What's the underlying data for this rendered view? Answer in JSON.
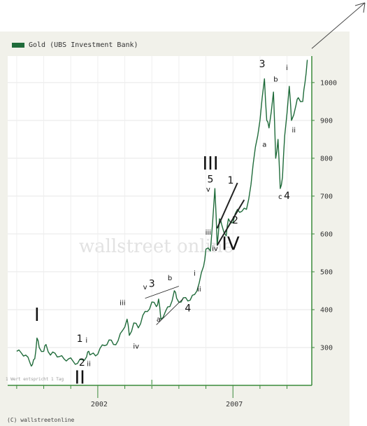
{
  "legend": {
    "series_name": "Gold (UBS Investment Bank)"
  },
  "credit": "(C) wallstreetonline",
  "note": "1 Wert entspricht 1 Tag",
  "watermark": "wallstreet online",
  "colors": {
    "line": "#1f6b3a",
    "plot_bg": "#ffffff",
    "frame_bg": "#f1f1ea",
    "axis": "#3a8a3a"
  },
  "chart_data": {
    "type": "line",
    "series": [
      {
        "name": "Gold (UBS Investment Bank)",
        "values": [
          [
            "1999-01",
            290
          ],
          [
            "1999-03",
            286
          ],
          [
            "1999-05",
            280
          ],
          [
            "1999-07",
            258
          ],
          [
            "1999-08",
            255
          ],
          [
            "1999-09",
            270
          ],
          [
            "1999-10",
            325
          ],
          [
            "1999-11",
            300
          ],
          [
            "2000-01",
            290
          ],
          [
            "2000-02",
            308
          ],
          [
            "2000-04",
            280
          ],
          [
            "2000-06",
            285
          ],
          [
            "2000-08",
            276
          ],
          [
            "2000-10",
            270
          ],
          [
            "2000-12",
            270
          ],
          [
            "2001-02",
            264
          ],
          [
            "2001-04",
            258
          ],
          [
            "2001-06",
            268
          ],
          [
            "2001-08",
            275
          ],
          [
            "2001-09",
            290
          ],
          [
            "2001-10",
            282
          ],
          [
            "2001-12",
            278
          ],
          [
            "2002-02",
            298
          ],
          [
            "2002-04",
            305
          ],
          [
            "2002-06",
            320
          ],
          [
            "2002-08",
            308
          ],
          [
            "2002-10",
            318
          ],
          [
            "2002-12",
            345
          ],
          [
            "2003-02",
            375
          ],
          [
            "2003-03",
            332
          ],
          [
            "2003-05",
            365
          ],
          [
            "2003-07",
            352
          ],
          [
            "2003-09",
            385
          ],
          [
            "2003-11",
            395
          ],
          [
            "2004-01",
            420
          ],
          [
            "2004-03",
            408
          ],
          [
            "2004-04",
            428
          ],
          [
            "2004-05",
            375
          ],
          [
            "2004-07",
            395
          ],
          [
            "2004-09",
            408
          ],
          [
            "2004-11",
            450
          ],
          [
            "2004-12",
            430
          ],
          [
            "2005-02",
            420
          ],
          [
            "2005-04",
            432
          ],
          [
            "2005-06",
            425
          ],
          [
            "2005-08",
            440
          ],
          [
            "2005-10",
            470
          ],
          [
            "2005-12",
            515
          ],
          [
            "2006-01",
            560
          ],
          [
            "2006-03",
            555
          ],
          [
            "2006-05",
            720
          ],
          [
            "2006-06",
            570
          ],
          [
            "2006-07",
            640
          ],
          [
            "2006-08",
            625
          ],
          [
            "2006-10",
            595
          ],
          [
            "2006-11",
            640
          ],
          [
            "2007-01",
            630
          ],
          [
            "2007-03",
            665
          ],
          [
            "2007-05",
            660
          ],
          [
            "2007-07",
            665
          ],
          [
            "2007-09",
            730
          ],
          [
            "2007-11",
            830
          ],
          [
            "2008-01",
            900
          ],
          [
            "2008-03",
            1010
          ],
          [
            "2008-04",
            900
          ],
          [
            "2008-05",
            880
          ],
          [
            "2008-07",
            975
          ],
          [
            "2008-08",
            800
          ],
          [
            "2008-09",
            850
          ],
          [
            "2008-10",
            720
          ],
          [
            "2008-11",
            750
          ],
          [
            "2008-12",
            860
          ],
          [
            "2009-02",
            990
          ],
          [
            "2009-03",
            900
          ],
          [
            "2009-05",
            940
          ],
          [
            "2009-06",
            960
          ],
          [
            "2009-08",
            950
          ],
          [
            "2009-09",
            1000
          ],
          [
            "2009-10",
            1060
          ]
        ]
      }
    ],
    "x_tick_labels": [
      "2002",
      "2007"
    ],
    "y_ticks": [
      300,
      400,
      500,
      600,
      700,
      800,
      900,
      1000
    ],
    "ylim": [
      200,
      1070
    ],
    "xlim": [
      "1998-09",
      "2009-12"
    ],
    "grid": true,
    "legend_position": "top-left",
    "annotations": [
      {
        "text": "I",
        "x": "1999-10",
        "y": 370,
        "size": "large"
      },
      {
        "text": "II",
        "x": "2001-05",
        "y": 205,
        "size": "large"
      },
      {
        "text": "1",
        "x": "2001-05",
        "y": 315,
        "size": "medium"
      },
      {
        "text": "i",
        "x": "2001-08",
        "y": 313,
        "size": "small"
      },
      {
        "text": "2",
        "x": "2001-06",
        "y": 252,
        "size": "medium"
      },
      {
        "text": "ii",
        "x": "2001-09",
        "y": 251,
        "size": "small"
      },
      {
        "text": "iii",
        "x": "2002-12",
        "y": 412,
        "size": "small"
      },
      {
        "text": "iv",
        "x": "2003-06",
        "y": 297,
        "size": "small"
      },
      {
        "text": "v",
        "x": "2003-10",
        "y": 454,
        "size": "small"
      },
      {
        "text": "3",
        "x": "2004-01",
        "y": 460,
        "size": "medium"
      },
      {
        "text": "b",
        "x": "2004-09",
        "y": 478,
        "size": "small"
      },
      {
        "text": "a",
        "x": "2004-04",
        "y": 368,
        "size": "small"
      },
      {
        "text": "4",
        "x": "2005-05",
        "y": 395,
        "size": "medium"
      },
      {
        "text": "i",
        "x": "2005-08",
        "y": 490,
        "size": "small"
      },
      {
        "text": "ii",
        "x": "2005-10",
        "y": 448,
        "size": "small"
      },
      {
        "text": "III",
        "x": "2006-03",
        "y": 770,
        "size": "large"
      },
      {
        "text": "v",
        "x": "2006-02",
        "y": 712,
        "size": "small"
      },
      {
        "text": "5",
        "x": "2006-03",
        "y": 736,
        "size": "medium"
      },
      {
        "text": "iii",
        "x": "2006-02",
        "y": 598,
        "size": "small"
      },
      {
        "text": "iv",
        "x": "2006-05",
        "y": 555,
        "size": "small"
      },
      {
        "text": "1",
        "x": "2006-12",
        "y": 733,
        "size": "medium"
      },
      {
        "text": "2",
        "x": "2007-02",
        "y": 628,
        "size": "medium"
      },
      {
        "text": "IV",
        "x": "2006-12",
        "y": 558,
        "size": "large"
      },
      {
        "text": "3",
        "x": "2008-02",
        "y": 1040,
        "size": "medium"
      },
      {
        "text": "b",
        "x": "2008-08",
        "y": 1002,
        "size": "small"
      },
      {
        "text": "i",
        "x": "2009-01",
        "y": 1033,
        "size": "small"
      },
      {
        "text": "a",
        "x": "2008-03",
        "y": 830,
        "size": "small"
      },
      {
        "text": "ii",
        "x": "2009-04",
        "y": 868,
        "size": "small"
      },
      {
        "text": "c",
        "x": "2008-10",
        "y": 692,
        "size": "small"
      },
      {
        "text": "4",
        "x": "2009-01",
        "y": 692,
        "size": "medium"
      }
    ]
  }
}
